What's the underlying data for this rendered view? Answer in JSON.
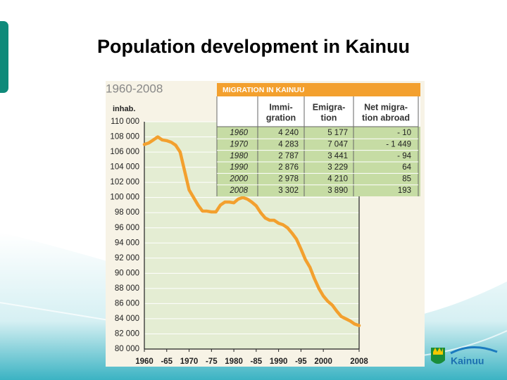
{
  "title": "Population development in Kainuu",
  "chart_data": {
    "type": "line",
    "subtitle": "1960-2008",
    "y_label": "inhab.",
    "x": [
      1960,
      1961,
      1962,
      1963,
      1964,
      1965,
      1966,
      1967,
      1968,
      1969,
      1970,
      1971,
      1972,
      1973,
      1974,
      1975,
      1976,
      1977,
      1978,
      1979,
      1980,
      1981,
      1982,
      1983,
      1984,
      1985,
      1986,
      1987,
      1988,
      1989,
      1990,
      1991,
      1992,
      1993,
      1994,
      1995,
      1996,
      1997,
      1998,
      1999,
      2000,
      2001,
      2002,
      2003,
      2004,
      2005,
      2006,
      2007,
      2008
    ],
    "series": [
      {
        "color": "#f3a02e",
        "values": [
          107000,
          107200,
          107600,
          108000,
          107600,
          107500,
          107300,
          106900,
          106000,
          103500,
          101000,
          100000,
          99000,
          98200,
          98200,
          98100,
          98100,
          99000,
          99400,
          99400,
          99300,
          99800,
          100000,
          99800,
          99400,
          98900,
          98000,
          97300,
          97000,
          97000,
          96600,
          96400,
          96000,
          95300,
          94500,
          93200,
          91800,
          90800,
          89300,
          88000,
          87000,
          86300,
          85800,
          85000,
          84300,
          84000,
          83700,
          83300,
          83100
        ]
      }
    ],
    "xlim": [
      1960,
      2008
    ],
    "xticks": [
      1960,
      {
        "value": 1965,
        "label": "-65"
      },
      1970,
      {
        "value": 1975,
        "label": "-75"
      },
      1980,
      {
        "value": 1985,
        "label": "-85"
      },
      1990,
      {
        "value": 1995,
        "label": "-95"
      },
      2000,
      2008
    ],
    "ylim": [
      80000,
      110000
    ],
    "yticks": [
      {
        "value": 80000,
        "label": "80 000"
      },
      {
        "value": 82000,
        "label": "82 000"
      },
      {
        "value": 84000,
        "label": "84 000"
      },
      {
        "value": 86000,
        "label": "86 000"
      },
      {
        "value": 88000,
        "label": "88 000"
      },
      {
        "value": 90000,
        "label": "90 000"
      },
      {
        "value": 92000,
        "label": "92 000"
      },
      {
        "value": 94000,
        "label": "94 000"
      },
      {
        "value": 96000,
        "label": "96 000"
      },
      {
        "value": 98000,
        "label": "98 000"
      },
      {
        "value": 100000,
        "label": "100 000"
      },
      {
        "value": 102000,
        "label": "102 000"
      },
      {
        "value": 104000,
        "label": "104 000"
      },
      {
        "value": 106000,
        "label": "106 000"
      },
      {
        "value": 108000,
        "label": "108 000"
      },
      {
        "value": 110000,
        "label": "110 000"
      }
    ],
    "grid": true
  },
  "table": {
    "title": "MIGRATION IN KAINUU",
    "headers": [
      [
        "Immi-",
        "gration"
      ],
      [
        "Emigra-",
        "tion"
      ],
      [
        "Net migra-",
        "tion abroad"
      ]
    ],
    "rows": [
      [
        "1960",
        "4 240",
        "5 177",
        "- 10"
      ],
      [
        "1970",
        "4 283",
        "7 047",
        "- 1 449"
      ],
      [
        "1980",
        "2 787",
        "3 441",
        "- 94"
      ],
      [
        "1990",
        "2 876",
        "3 229",
        "64"
      ],
      [
        "2000",
        "2 978",
        "4 210",
        "85"
      ],
      [
        "2008",
        "3 302",
        "3 890",
        "193"
      ]
    ]
  },
  "logo": "Kainuu"
}
